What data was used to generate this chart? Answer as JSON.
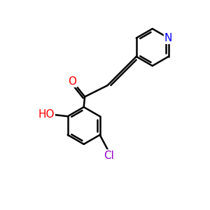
{
  "background_color": "#ffffff",
  "atom_colors": {
    "O": "#ff0000",
    "N": "#0000ff",
    "Cl": "#9900cc",
    "C": "#000000",
    "H": "#000000"
  },
  "bond_color": "#000000",
  "bond_width": 1.8,
  "font_size_atoms": 11,
  "figsize": [
    3.0,
    3.0
  ],
  "dpi": 100
}
